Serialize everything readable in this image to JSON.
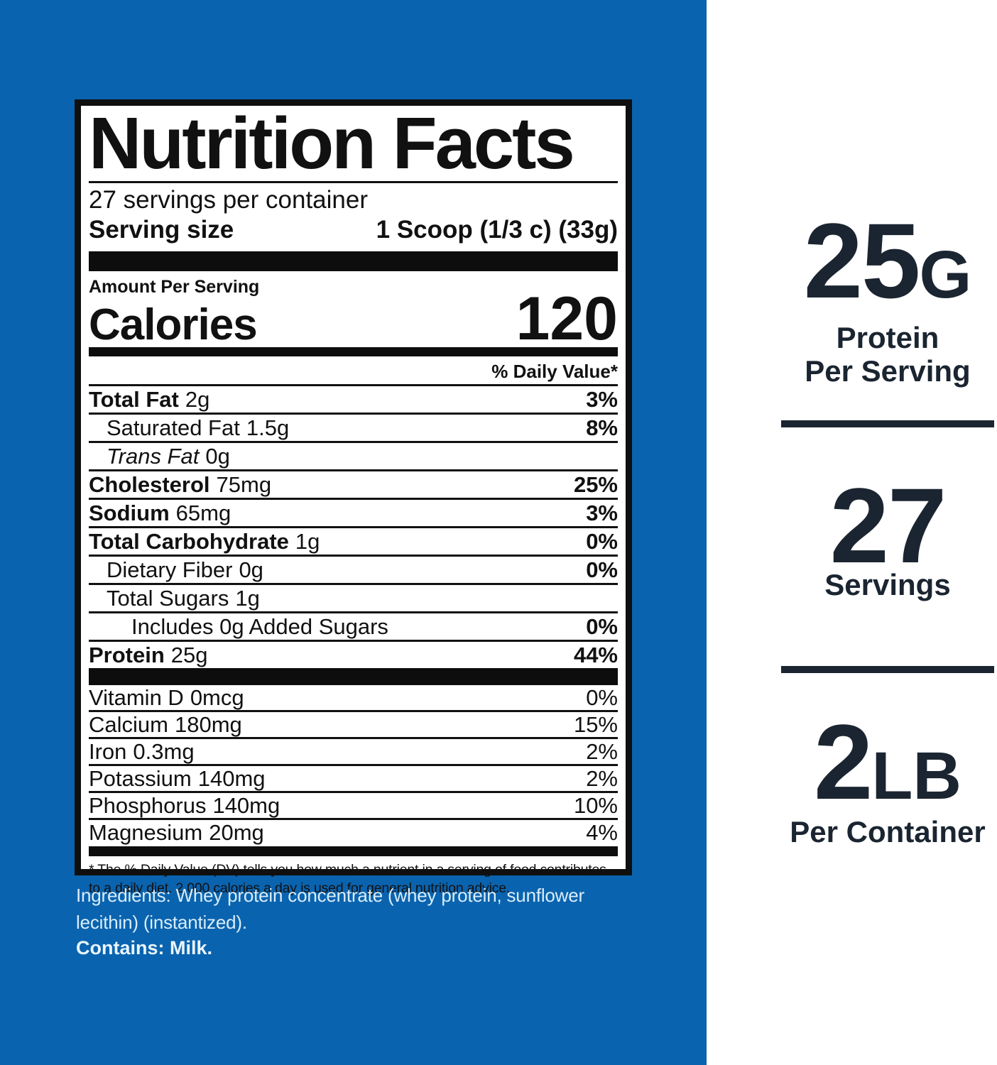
{
  "colors": {
    "background_blue": "#0a63ae",
    "label_ink": "#111111",
    "label_paper": "#ffffff",
    "highlight_navy": "#1b2531",
    "ingredients_text": "#d9edfa"
  },
  "nutrition_label": {
    "title": "Nutrition Facts",
    "servings_per_container": "27 servings per container",
    "serving_size_label": "Serving size",
    "serving_size_value": "1 Scoop (1/3 c) (33g)",
    "amount_per_serving": "Amount Per Serving",
    "calories_label": "Calories",
    "calories_value": "120",
    "daily_value_header": "% Daily Value*",
    "nutrients": [
      {
        "name": "Total Fat",
        "amount": "2g",
        "dv": "3%",
        "bold": true,
        "italic": false,
        "indent": 0
      },
      {
        "name": "Saturated Fat",
        "amount": "1.5g",
        "dv": "8%",
        "bold": false,
        "italic": false,
        "indent": 1
      },
      {
        "name": "Trans Fat",
        "amount": "0g",
        "dv": "",
        "bold": false,
        "italic": true,
        "indent": 1
      },
      {
        "name": "Cholesterol",
        "amount": "75mg",
        "dv": "25%",
        "bold": true,
        "italic": false,
        "indent": 0
      },
      {
        "name": "Sodium",
        "amount": "65mg",
        "dv": "3%",
        "bold": true,
        "italic": false,
        "indent": 0
      },
      {
        "name": "Total Carbohydrate",
        "amount": "1g",
        "dv": "0%",
        "bold": true,
        "italic": false,
        "indent": 0
      },
      {
        "name": "Dietary Fiber",
        "amount": "0g",
        "dv": "0%",
        "bold": false,
        "italic": false,
        "indent": 1
      },
      {
        "name": "Total Sugars",
        "amount": "1g",
        "dv": "",
        "bold": false,
        "italic": false,
        "indent": 1
      },
      {
        "name": "Includes 0g Added Sugars",
        "amount": "",
        "dv": "0%",
        "bold": false,
        "italic": false,
        "indent": 2
      },
      {
        "name": "Protein",
        "amount": "25g",
        "dv": "44%",
        "bold": true,
        "italic": false,
        "indent": 0
      }
    ],
    "micronutrients": [
      {
        "name": "Vitamin D",
        "amount": "0mcg",
        "dv": "0%"
      },
      {
        "name": "Calcium",
        "amount": "180mg",
        "dv": "15%"
      },
      {
        "name": "Iron",
        "amount": "0.3mg",
        "dv": "2%"
      },
      {
        "name": "Potassium",
        "amount": "140mg",
        "dv": "2%"
      },
      {
        "name": "Phosphorus",
        "amount": "140mg",
        "dv": "10%"
      },
      {
        "name": "Magnesium",
        "amount": "20mg",
        "dv": "4%"
      }
    ],
    "footnote": "* The % Daily Value (DV) tells you how much a nutrient in a serving of food contributes to a daily diet. 2,000 calories a day is used for general nutrition advice."
  },
  "ingredients": {
    "text": "Ingredients: Whey protein concentrate (whey protein, sunflower lecithin) (instantized).",
    "contains": "Contains: Milk."
  },
  "highlights": [
    {
      "value": "25",
      "unit": "G",
      "line1": "Protein",
      "line2": "Per Serving"
    },
    {
      "value": "27",
      "unit": "",
      "line1": "Servings",
      "line2": ""
    },
    {
      "value": "2",
      "unit": "LB",
      "line1": "Per Container",
      "line2": ""
    }
  ]
}
